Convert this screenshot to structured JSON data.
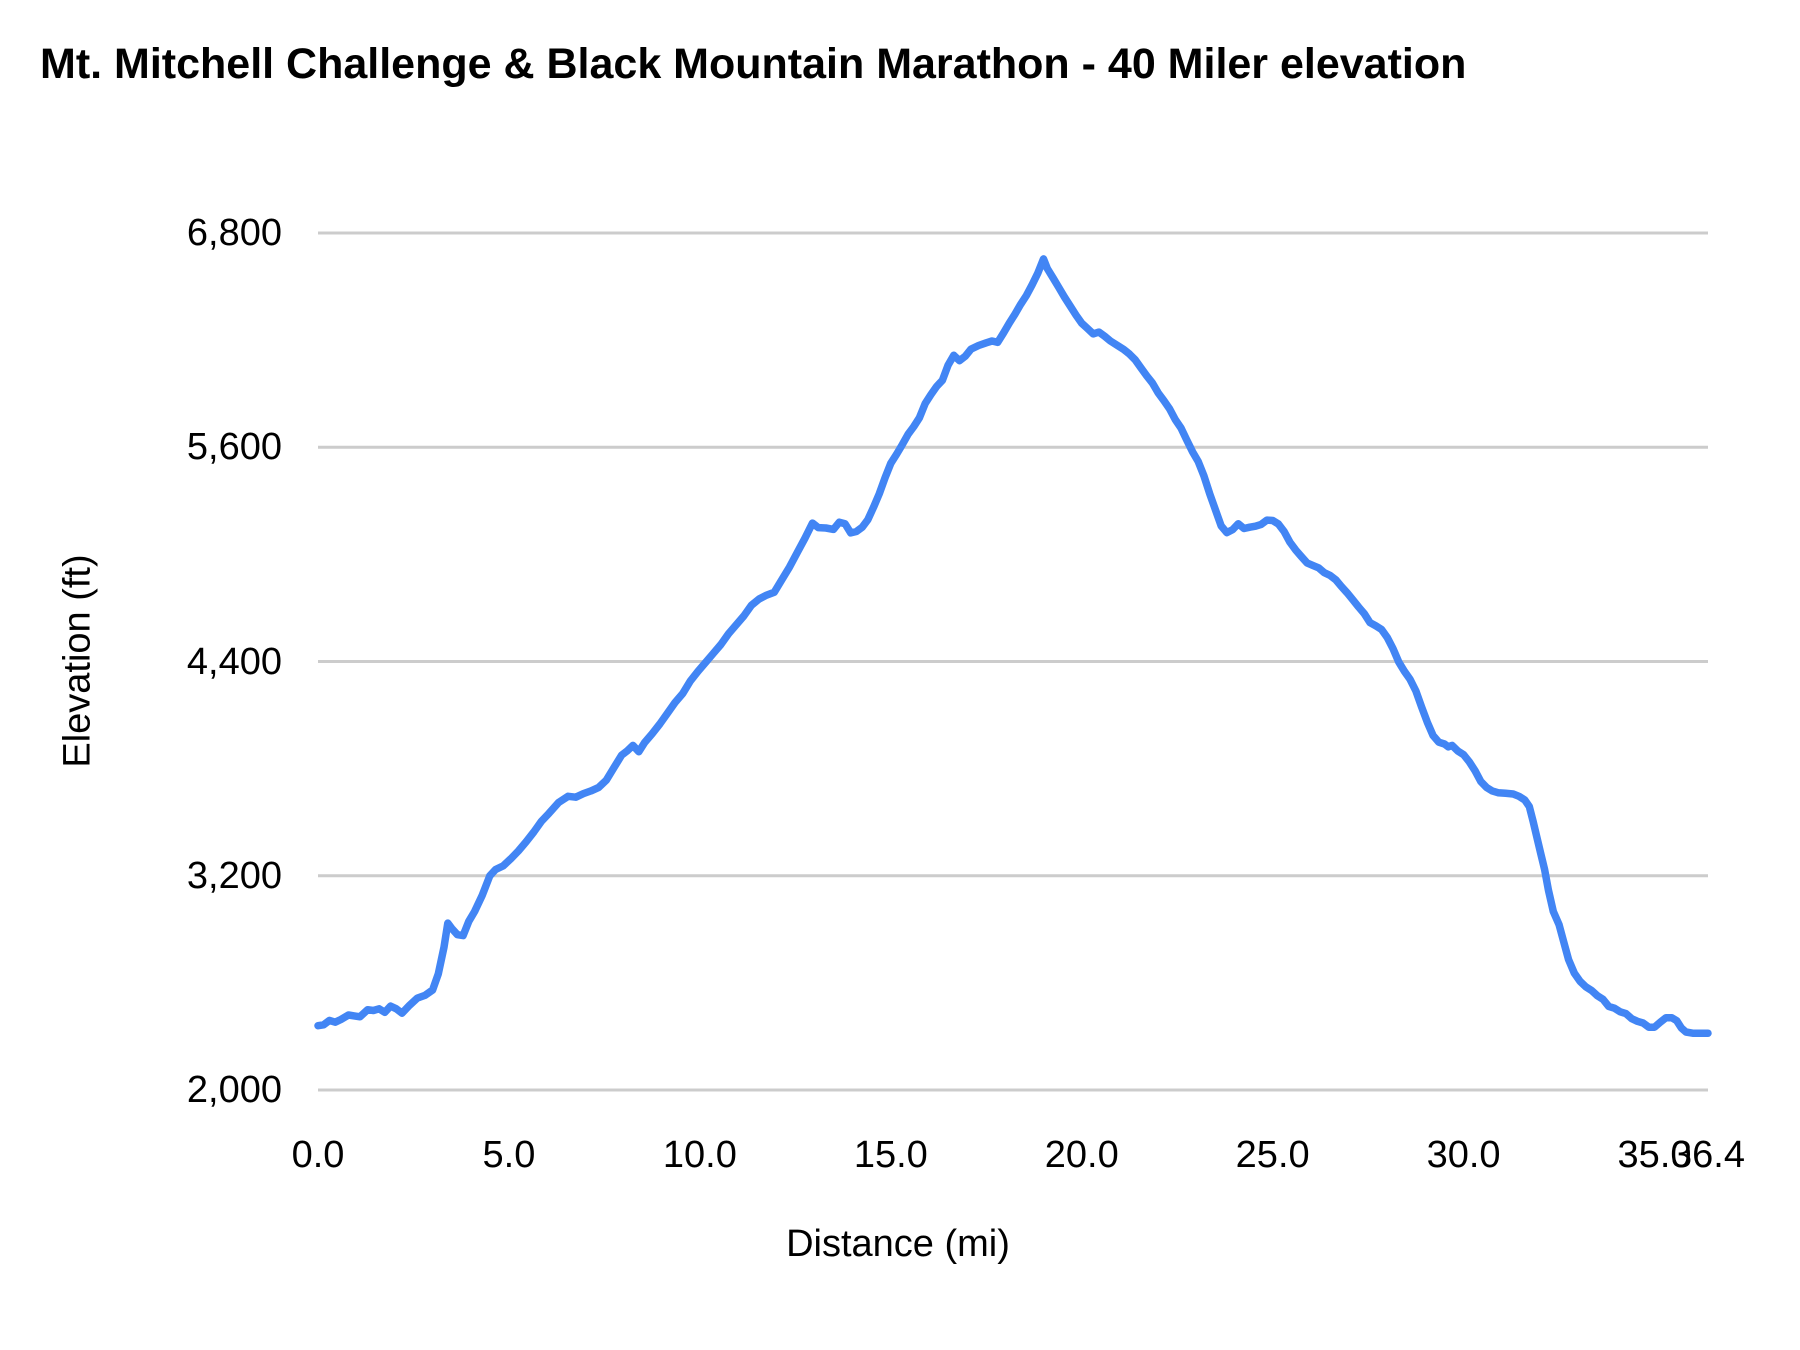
{
  "chart_data": {
    "type": "line",
    "title": "Mt. Mitchell Challenge & Black Mountain Marathon - 40 Miler elevation",
    "xlabel": "Distance (mi)",
    "ylabel": "Elevation (ft)",
    "xlim": [
      0,
      36.4
    ],
    "ylim": [
      2000,
      6800
    ],
    "grid": "horizontal-only",
    "legend": "none",
    "x_ticks": [
      {
        "value": 0.0,
        "label": "0.0"
      },
      {
        "value": 5.0,
        "label": "5.0"
      },
      {
        "value": 10.0,
        "label": "10.0"
      },
      {
        "value": 15.0,
        "label": "15.0"
      },
      {
        "value": 20.0,
        "label": "20.0"
      },
      {
        "value": 25.0,
        "label": "25.0"
      },
      {
        "value": 30.0,
        "label": "30.0"
      },
      {
        "value": 35.0,
        "label": "35.0"
      },
      {
        "value": 36.4,
        "label": "36.4"
      }
    ],
    "y_ticks": [
      {
        "value": 2000,
        "label": "2,000"
      },
      {
        "value": 3200,
        "label": "3,200"
      },
      {
        "value": 4400,
        "label": "4,400"
      },
      {
        "value": 5600,
        "label": "5,600"
      },
      {
        "value": 6800,
        "label": "6,800"
      }
    ],
    "series": [
      {
        "name": "Elevation (ft)",
        "color": "#4285f4",
        "points": [
          [
            0.0,
            2360
          ],
          [
            0.15,
            2365
          ],
          [
            0.3,
            2390
          ],
          [
            0.45,
            2380
          ],
          [
            0.6,
            2395
          ],
          [
            0.8,
            2420
          ],
          [
            0.95,
            2415
          ],
          [
            1.1,
            2410
          ],
          [
            1.3,
            2450
          ],
          [
            1.45,
            2445
          ],
          [
            1.6,
            2455
          ],
          [
            1.75,
            2435
          ],
          [
            1.9,
            2470
          ],
          [
            2.05,
            2455
          ],
          [
            2.2,
            2430
          ],
          [
            2.4,
            2475
          ],
          [
            2.6,
            2515
          ],
          [
            2.8,
            2530
          ],
          [
            3.0,
            2560
          ],
          [
            3.15,
            2650
          ],
          [
            3.3,
            2800
          ],
          [
            3.4,
            2935
          ],
          [
            3.5,
            2905
          ],
          [
            3.65,
            2870
          ],
          [
            3.8,
            2865
          ],
          [
            3.95,
            2945
          ],
          [
            4.1,
            3000
          ],
          [
            4.3,
            3090
          ],
          [
            4.5,
            3200
          ],
          [
            4.65,
            3235
          ],
          [
            4.85,
            3255
          ],
          [
            5.05,
            3295
          ],
          [
            5.25,
            3340
          ],
          [
            5.45,
            3390
          ],
          [
            5.65,
            3445
          ],
          [
            5.85,
            3505
          ],
          [
            6.05,
            3550
          ],
          [
            6.3,
            3610
          ],
          [
            6.55,
            3645
          ],
          [
            6.75,
            3640
          ],
          [
            6.95,
            3660
          ],
          [
            7.15,
            3675
          ],
          [
            7.35,
            3695
          ],
          [
            7.55,
            3735
          ],
          [
            7.75,
            3805
          ],
          [
            7.95,
            3875
          ],
          [
            8.1,
            3900
          ],
          [
            8.25,
            3930
          ],
          [
            8.4,
            3895
          ],
          [
            8.55,
            3945
          ],
          [
            8.75,
            3995
          ],
          [
            8.95,
            4050
          ],
          [
            9.15,
            4110
          ],
          [
            9.35,
            4170
          ],
          [
            9.55,
            4220
          ],
          [
            9.75,
            4290
          ],
          [
            9.95,
            4345
          ],
          [
            10.15,
            4395
          ],
          [
            10.35,
            4445
          ],
          [
            10.55,
            4495
          ],
          [
            10.75,
            4555
          ],
          [
            10.95,
            4605
          ],
          [
            11.15,
            4655
          ],
          [
            11.35,
            4715
          ],
          [
            11.55,
            4750
          ],
          [
            11.75,
            4772
          ],
          [
            11.95,
            4788
          ],
          [
            12.15,
            4860
          ],
          [
            12.35,
            4930
          ],
          [
            12.55,
            5010
          ],
          [
            12.75,
            5090
          ],
          [
            12.95,
            5175
          ],
          [
            13.1,
            5150
          ],
          [
            13.3,
            5148
          ],
          [
            13.5,
            5140
          ],
          [
            13.65,
            5180
          ],
          [
            13.8,
            5172
          ],
          [
            13.95,
            5120
          ],
          [
            14.1,
            5128
          ],
          [
            14.25,
            5152
          ],
          [
            14.4,
            5195
          ],
          [
            14.55,
            5265
          ],
          [
            14.7,
            5340
          ],
          [
            14.85,
            5430
          ],
          [
            15.0,
            5510
          ],
          [
            15.15,
            5560
          ],
          [
            15.3,
            5615
          ],
          [
            15.45,
            5672
          ],
          [
            15.6,
            5715
          ],
          [
            15.75,
            5765
          ],
          [
            15.9,
            5845
          ],
          [
            16.05,
            5895
          ],
          [
            16.2,
            5940
          ],
          [
            16.35,
            5975
          ],
          [
            16.5,
            6060
          ],
          [
            16.65,
            6115
          ],
          [
            16.8,
            6085
          ],
          [
            16.95,
            6110
          ],
          [
            17.1,
            6150
          ],
          [
            17.3,
            6170
          ],
          [
            17.5,
            6185
          ],
          [
            17.65,
            6195
          ],
          [
            17.8,
            6188
          ],
          [
            17.95,
            6240
          ],
          [
            18.1,
            6295
          ],
          [
            18.25,
            6345
          ],
          [
            18.4,
            6400
          ],
          [
            18.55,
            6450
          ],
          [
            18.7,
            6510
          ],
          [
            18.85,
            6575
          ],
          [
            19.0,
            6655
          ],
          [
            19.1,
            6600
          ],
          [
            19.25,
            6548
          ],
          [
            19.4,
            6495
          ],
          [
            19.55,
            6440
          ],
          [
            19.7,
            6390
          ],
          [
            19.85,
            6340
          ],
          [
            20.0,
            6295
          ],
          [
            20.15,
            6265
          ],
          [
            20.3,
            6235
          ],
          [
            20.45,
            6245
          ],
          [
            20.6,
            6222
          ],
          [
            20.75,
            6195
          ],
          [
            20.95,
            6168
          ],
          [
            21.1,
            6148
          ],
          [
            21.25,
            6122
          ],
          [
            21.4,
            6090
          ],
          [
            21.55,
            6045
          ],
          [
            21.7,
            6000
          ],
          [
            21.85,
            5960
          ],
          [
            22.0,
            5905
          ],
          [
            22.15,
            5862
          ],
          [
            22.3,
            5815
          ],
          [
            22.45,
            5755
          ],
          [
            22.6,
            5708
          ],
          [
            22.75,
            5640
          ],
          [
            22.9,
            5575
          ],
          [
            23.05,
            5520
          ],
          [
            23.2,
            5440
          ],
          [
            23.35,
            5340
          ],
          [
            23.5,
            5250
          ],
          [
            23.65,
            5160
          ],
          [
            23.8,
            5122
          ],
          [
            23.95,
            5138
          ],
          [
            24.1,
            5172
          ],
          [
            24.25,
            5145
          ],
          [
            24.4,
            5152
          ],
          [
            24.55,
            5158
          ],
          [
            24.7,
            5168
          ],
          [
            24.85,
            5192
          ],
          [
            25.0,
            5190
          ],
          [
            25.15,
            5170
          ],
          [
            25.3,
            5128
          ],
          [
            25.45,
            5068
          ],
          [
            25.6,
            5025
          ],
          [
            25.75,
            4988
          ],
          [
            25.9,
            4952
          ],
          [
            26.05,
            4938
          ],
          [
            26.2,
            4925
          ],
          [
            26.35,
            4898
          ],
          [
            26.5,
            4882
          ],
          [
            26.65,
            4858
          ],
          [
            26.8,
            4820
          ],
          [
            26.95,
            4785
          ],
          [
            27.1,
            4745
          ],
          [
            27.25,
            4705
          ],
          [
            27.4,
            4668
          ],
          [
            27.55,
            4618
          ],
          [
            27.7,
            4600
          ],
          [
            27.85,
            4580
          ],
          [
            28.0,
            4535
          ],
          [
            28.15,
            4472
          ],
          [
            28.3,
            4398
          ],
          [
            28.45,
            4345
          ],
          [
            28.6,
            4300
          ],
          [
            28.75,
            4235
          ],
          [
            28.9,
            4145
          ],
          [
            29.05,
            4060
          ],
          [
            29.2,
            3985
          ],
          [
            29.35,
            3948
          ],
          [
            29.5,
            3938
          ],
          [
            29.6,
            3922
          ],
          [
            29.7,
            3930
          ],
          [
            29.85,
            3898
          ],
          [
            30.0,
            3878
          ],
          [
            30.15,
            3838
          ],
          [
            30.3,
            3788
          ],
          [
            30.45,
            3728
          ],
          [
            30.6,
            3695
          ],
          [
            30.75,
            3675
          ],
          [
            30.9,
            3665
          ],
          [
            31.1,
            3662
          ],
          [
            31.3,
            3658
          ],
          [
            31.45,
            3645
          ],
          [
            31.6,
            3625
          ],
          [
            31.72,
            3588
          ],
          [
            31.82,
            3505
          ],
          [
            31.92,
            3415
          ],
          [
            32.02,
            3325
          ],
          [
            32.12,
            3235
          ],
          [
            32.22,
            3120
          ],
          [
            32.35,
            3000
          ],
          [
            32.5,
            2925
          ],
          [
            32.62,
            2830
          ],
          [
            32.75,
            2730
          ],
          [
            32.9,
            2655
          ],
          [
            33.05,
            2608
          ],
          [
            33.2,
            2578
          ],
          [
            33.35,
            2558
          ],
          [
            33.5,
            2528
          ],
          [
            33.65,
            2508
          ],
          [
            33.8,
            2468
          ],
          [
            33.95,
            2458
          ],
          [
            34.1,
            2438
          ],
          [
            34.25,
            2428
          ],
          [
            34.4,
            2400
          ],
          [
            34.55,
            2385
          ],
          [
            34.7,
            2375
          ],
          [
            34.85,
            2352
          ],
          [
            35.0,
            2352
          ],
          [
            35.15,
            2380
          ],
          [
            35.3,
            2405
          ],
          [
            35.45,
            2405
          ],
          [
            35.58,
            2388
          ],
          [
            35.7,
            2348
          ],
          [
            35.82,
            2325
          ],
          [
            36.0,
            2318
          ],
          [
            36.2,
            2318
          ],
          [
            36.4,
            2318
          ]
        ]
      }
    ]
  },
  "colors": {
    "line": "#4285f4",
    "gridline": "#cccccc",
    "text": "#000000",
    "background": "#ffffff"
  }
}
